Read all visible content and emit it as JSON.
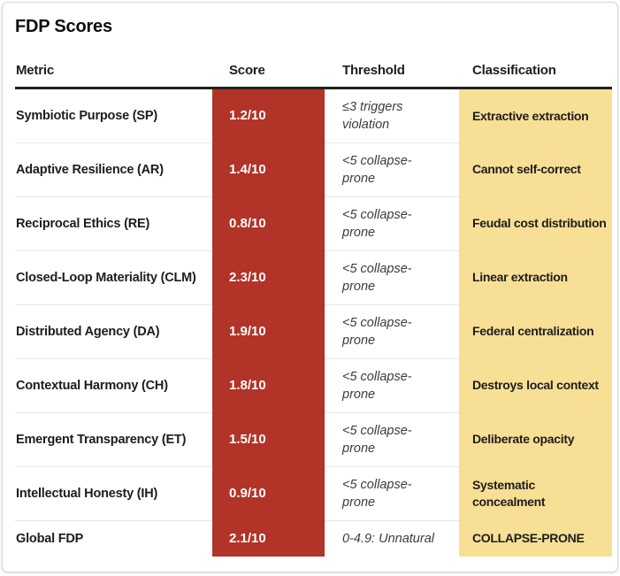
{
  "title": "FDP Scores",
  "table": {
    "columns": [
      "Metric",
      "Score",
      "Threshold",
      "Classification"
    ],
    "rows": [
      {
        "metric": "Symbiotic Purpose (SP)",
        "score": "1.2/10",
        "threshold": "≤3 triggers violation",
        "classification": "Extractive extraction"
      },
      {
        "metric": "Adaptive Resilience (AR)",
        "score": "1.4/10",
        "threshold": "<5 collapse-prone",
        "classification": "Cannot self-correct"
      },
      {
        "metric": "Reciprocal Ethics (RE)",
        "score": "0.8/10",
        "threshold": "<5 collapse-prone",
        "classification": "Feudal cost distribution"
      },
      {
        "metric": "Closed-Loop Materiality (CLM)",
        "score": "2.3/10",
        "threshold": "<5 collapse-prone",
        "classification": "Linear extraction"
      },
      {
        "metric": "Distributed Agency (DA)",
        "score": "1.9/10",
        "threshold": "<5 collapse-prone",
        "classification": "Federal centralization"
      },
      {
        "metric": "Contextual Harmony (CH)",
        "score": "1.8/10",
        "threshold": "<5 collapse-prone",
        "classification": "Destroys local context"
      },
      {
        "metric": "Emergent Transparency (ET)",
        "score": "1.5/10",
        "threshold": "<5 collapse-prone",
        "classification": "Deliberate opacity"
      },
      {
        "metric": "Intellectual Honesty (IH)",
        "score": "0.9/10",
        "threshold": "<5 collapse-prone",
        "classification": "Systematic concealment"
      },
      {
        "metric": "Global FDP",
        "score": "2.1/10",
        "threshold": "0-4.9: Unnatural",
        "classification": "COLLAPSE-PRONE"
      }
    ]
  },
  "colors": {
    "score_bg": "#b23327",
    "score_text": "#ffffff",
    "classification_bg": "#f7df95",
    "header_border": "#202020",
    "row_divider": "#e7e7e7"
  }
}
